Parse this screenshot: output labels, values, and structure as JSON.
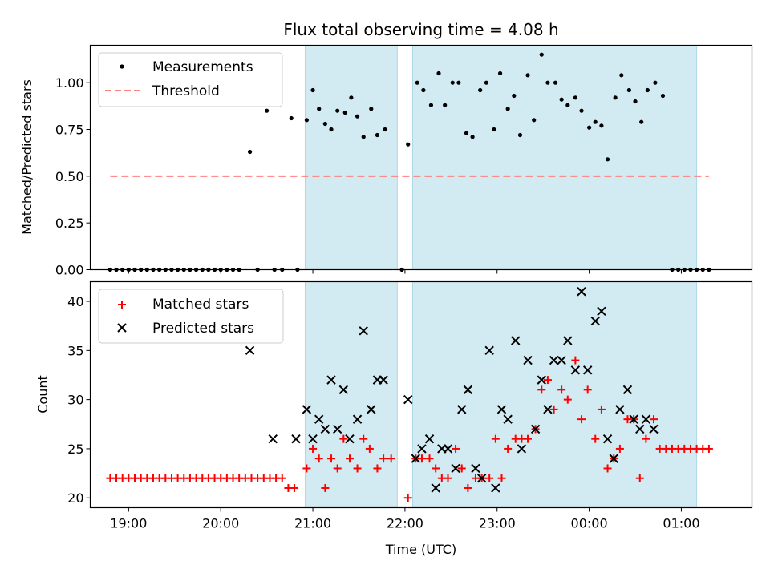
{
  "figure": {
    "title": "Flux total observing time = 4.08 h"
  },
  "colors": {
    "shade": "#add8e6",
    "measurement": "#000000",
    "threshold": "#ff7f7f",
    "matched": "#ff0000",
    "predicted": "#000000"
  },
  "chart_data": [
    {
      "type": "scatter",
      "title": "Flux total observing time = 4.08 h",
      "xlabel": "",
      "ylabel": "Matched/Predicted stars",
      "xlim": [
        "18:35",
        "01:46"
      ],
      "ylim": [
        0,
        1.2
      ],
      "yticks": [
        "0.00",
        "0.25",
        "0.50",
        "0.75",
        "1.00"
      ],
      "grid": false,
      "legend_position": "top-left",
      "shaded_intervals": [
        [
          "20:55",
          "21:55"
        ],
        [
          "22:05",
          "01:10"
        ]
      ],
      "series": [
        {
          "name": "Measurements",
          "style": "dots",
          "points": [
            [
              "18:48",
              0
            ],
            [
              "18:52",
              0
            ],
            [
              "18:56",
              0
            ],
            [
              "19:00",
              0
            ],
            [
              "19:04",
              0
            ],
            [
              "19:08",
              0
            ],
            [
              "19:12",
              0
            ],
            [
              "19:16",
              0
            ],
            [
              "19:20",
              0
            ],
            [
              "19:24",
              0
            ],
            [
              "19:28",
              0
            ],
            [
              "19:32",
              0
            ],
            [
              "19:36",
              0
            ],
            [
              "19:40",
              0
            ],
            [
              "19:44",
              0
            ],
            [
              "19:48",
              0
            ],
            [
              "19:52",
              0
            ],
            [
              "19:56",
              0
            ],
            [
              "20:00",
              0
            ],
            [
              "20:04",
              0
            ],
            [
              "20:08",
              0
            ],
            [
              "20:12",
              0
            ],
            [
              "20:19",
              0.63
            ],
            [
              "20:24",
              0
            ],
            [
              "20:30",
              0.85
            ],
            [
              "20:35",
              0
            ],
            [
              "20:40",
              0
            ],
            [
              "20:46",
              0.81
            ],
            [
              "20:50",
              0
            ],
            [
              "20:56",
              0.8
            ],
            [
              "21:00",
              0.96
            ],
            [
              "21:04",
              0.86
            ],
            [
              "21:08",
              0.78
            ],
            [
              "21:12",
              0.75
            ],
            [
              "21:16",
              0.85
            ],
            [
              "21:21",
              0.84
            ],
            [
              "21:25",
              0.92
            ],
            [
              "21:29",
              0.82
            ],
            [
              "21:33",
              0.71
            ],
            [
              "21:38",
              0.86
            ],
            [
              "21:42",
              0.72
            ],
            [
              "21:47",
              0.75
            ],
            [
              "21:58",
              0
            ],
            [
              "22:02",
              0.67
            ],
            [
              "22:08",
              1.0
            ],
            [
              "22:12",
              0.96
            ],
            [
              "22:17",
              0.88
            ],
            [
              "22:22",
              1.05
            ],
            [
              "22:26",
              0.88
            ],
            [
              "22:31",
              1.0
            ],
            [
              "22:35",
              1.0
            ],
            [
              "22:40",
              0.73
            ],
            [
              "22:44",
              0.71
            ],
            [
              "22:49",
              0.96
            ],
            [
              "22:53",
              1.0
            ],
            [
              "22:58",
              0.75
            ],
            [
              "23:02",
              1.05
            ],
            [
              "23:07",
              0.86
            ],
            [
              "23:11",
              0.93
            ],
            [
              "23:15",
              0.72
            ],
            [
              "23:20",
              1.04
            ],
            [
              "23:24",
              0.8
            ],
            [
              "23:29",
              1.15
            ],
            [
              "23:33",
              1.0
            ],
            [
              "23:38",
              1.0
            ],
            [
              "23:42",
              0.91
            ],
            [
              "23:46",
              0.88
            ],
            [
              "23:51",
              0.92
            ],
            [
              "23:55",
              0.85
            ],
            [
              "00:00",
              0.76
            ],
            [
              "00:04",
              0.79
            ],
            [
              "00:08",
              0.77
            ],
            [
              "00:12",
              0.59
            ],
            [
              "00:17",
              0.92
            ],
            [
              "00:21",
              1.04
            ],
            [
              "00:26",
              0.96
            ],
            [
              "00:30",
              0.9
            ],
            [
              "00:34",
              0.79
            ],
            [
              "00:38",
              0.96
            ],
            [
              "00:43",
              1.0
            ],
            [
              "00:48",
              0.93
            ],
            [
              "00:54",
              0
            ],
            [
              "00:58",
              0
            ],
            [
              "01:02",
              0
            ],
            [
              "01:06",
              0
            ],
            [
              "01:10",
              0
            ],
            [
              "01:14",
              0
            ],
            [
              "01:18",
              0
            ]
          ]
        },
        {
          "name": "Threshold",
          "style": "dashed-line",
          "points": [
            [
              "18:48",
              0.5
            ],
            [
              "01:18",
              0.5
            ]
          ]
        }
      ]
    },
    {
      "type": "scatter",
      "xlabel": "Time (UTC)",
      "ylabel": "Count",
      "xlim": [
        "18:35",
        "01:46"
      ],
      "ylim": [
        19,
        42
      ],
      "xticks": [
        "19:00",
        "20:00",
        "21:00",
        "22:00",
        "23:00",
        "00:00",
        "01:00"
      ],
      "yticks": [
        "20",
        "25",
        "30",
        "35",
        "40"
      ],
      "grid": false,
      "legend_position": "top-left",
      "shaded_intervals": [
        [
          "20:55",
          "21:55"
        ],
        [
          "22:05",
          "01:10"
        ]
      ],
      "series": [
        {
          "name": "Matched stars",
          "marker": "plus",
          "points": [
            [
              "18:48",
              22
            ],
            [
              "18:52",
              22
            ],
            [
              "18:56",
              22
            ],
            [
              "19:00",
              22
            ],
            [
              "19:04",
              22
            ],
            [
              "19:08",
              22
            ],
            [
              "19:12",
              22
            ],
            [
              "19:16",
              22
            ],
            [
              "19:20",
              22
            ],
            [
              "19:24",
              22
            ],
            [
              "19:28",
              22
            ],
            [
              "19:32",
              22
            ],
            [
              "19:36",
              22
            ],
            [
              "19:40",
              22
            ],
            [
              "19:44",
              22
            ],
            [
              "19:48",
              22
            ],
            [
              "19:52",
              22
            ],
            [
              "19:56",
              22
            ],
            [
              "20:00",
              22
            ],
            [
              "20:04",
              22
            ],
            [
              "20:08",
              22
            ],
            [
              "20:12",
              22
            ],
            [
              "20:16",
              22
            ],
            [
              "20:20",
              22
            ],
            [
              "20:24",
              22
            ],
            [
              "20:28",
              22
            ],
            [
              "20:32",
              22
            ],
            [
              "20:36",
              22
            ],
            [
              "20:40",
              22
            ],
            [
              "20:44",
              21
            ],
            [
              "20:48",
              21
            ],
            [
              "20:56",
              23
            ],
            [
              "21:00",
              25
            ],
            [
              "21:04",
              24
            ],
            [
              "21:08",
              21
            ],
            [
              "21:12",
              24
            ],
            [
              "21:16",
              23
            ],
            [
              "21:20",
              26
            ],
            [
              "21:24",
              24
            ],
            [
              "21:29",
              23
            ],
            [
              "21:33",
              26
            ],
            [
              "21:37",
              25
            ],
            [
              "21:42",
              23
            ],
            [
              "21:46",
              24
            ],
            [
              "21:51",
              24
            ],
            [
              "22:02",
              20
            ],
            [
              "22:07",
              24
            ],
            [
              "22:11",
              24
            ],
            [
              "22:16",
              24
            ],
            [
              "22:20",
              23
            ],
            [
              "22:24",
              22
            ],
            [
              "22:28",
              22
            ],
            [
              "22:33",
              25
            ],
            [
              "22:37",
              23
            ],
            [
              "22:41",
              21
            ],
            [
              "22:46",
              22
            ],
            [
              "22:50",
              22
            ],
            [
              "22:55",
              22
            ],
            [
              "22:59",
              26
            ],
            [
              "23:03",
              22
            ],
            [
              "23:07",
              25
            ],
            [
              "23:12",
              26
            ],
            [
              "23:16",
              26
            ],
            [
              "23:20",
              26
            ],
            [
              "23:25",
              27
            ],
            [
              "23:29",
              31
            ],
            [
              "23:33",
              32
            ],
            [
              "23:37",
              29
            ],
            [
              "23:42",
              31
            ],
            [
              "23:46",
              30
            ],
            [
              "23:51",
              34
            ],
            [
              "23:55",
              28
            ],
            [
              "23:59",
              31
            ],
            [
              "00:04",
              26
            ],
            [
              "00:08",
              29
            ],
            [
              "00:12",
              23
            ],
            [
              "00:16",
              24
            ],
            [
              "00:20",
              25
            ],
            [
              "00:25",
              28
            ],
            [
              "00:29",
              28
            ],
            [
              "00:33",
              22
            ],
            [
              "00:37",
              26
            ],
            [
              "00:42",
              28
            ],
            [
              "00:46",
              25
            ],
            [
              "00:50",
              25
            ],
            [
              "00:54",
              25
            ],
            [
              "00:58",
              25
            ],
            [
              "01:02",
              25
            ],
            [
              "01:06",
              25
            ],
            [
              "01:10",
              25
            ],
            [
              "01:14",
              25
            ],
            [
              "01:18",
              25
            ]
          ]
        },
        {
          "name": "Predicted stars",
          "marker": "x",
          "points": [
            [
              "20:19",
              35
            ],
            [
              "20:34",
              26
            ],
            [
              "20:49",
              26
            ],
            [
              "20:56",
              29
            ],
            [
              "21:00",
              26
            ],
            [
              "21:04",
              28
            ],
            [
              "21:08",
              27
            ],
            [
              "21:12",
              32
            ],
            [
              "21:16",
              27
            ],
            [
              "21:20",
              31
            ],
            [
              "21:24",
              26
            ],
            [
              "21:29",
              28
            ],
            [
              "21:33",
              37
            ],
            [
              "21:38",
              29
            ],
            [
              "21:42",
              32
            ],
            [
              "21:46",
              32
            ],
            [
              "22:02",
              30
            ],
            [
              "22:07",
              24
            ],
            [
              "22:11",
              25
            ],
            [
              "22:16",
              26
            ],
            [
              "22:20",
              21
            ],
            [
              "22:24",
              25
            ],
            [
              "22:28",
              25
            ],
            [
              "22:33",
              23
            ],
            [
              "22:37",
              29
            ],
            [
              "22:41",
              31
            ],
            [
              "22:46",
              23
            ],
            [
              "22:50",
              22
            ],
            [
              "22:55",
              35
            ],
            [
              "22:59",
              21
            ],
            [
              "23:03",
              29
            ],
            [
              "23:07",
              28
            ],
            [
              "23:12",
              36
            ],
            [
              "23:16",
              25
            ],
            [
              "23:20",
              34
            ],
            [
              "23:25",
              27
            ],
            [
              "23:29",
              32
            ],
            [
              "23:33",
              29
            ],
            [
              "23:37",
              34
            ],
            [
              "23:42",
              34
            ],
            [
              "23:46",
              36
            ],
            [
              "23:51",
              33
            ],
            [
              "23:55",
              41
            ],
            [
              "23:59",
              33
            ],
            [
              "00:04",
              38
            ],
            [
              "00:08",
              39
            ],
            [
              "00:12",
              26
            ],
            [
              "00:16",
              24
            ],
            [
              "00:20",
              29
            ],
            [
              "00:25",
              31
            ],
            [
              "00:29",
              28
            ],
            [
              "00:33",
              27
            ],
            [
              "00:37",
              28
            ],
            [
              "00:42",
              27
            ]
          ]
        }
      ]
    }
  ]
}
